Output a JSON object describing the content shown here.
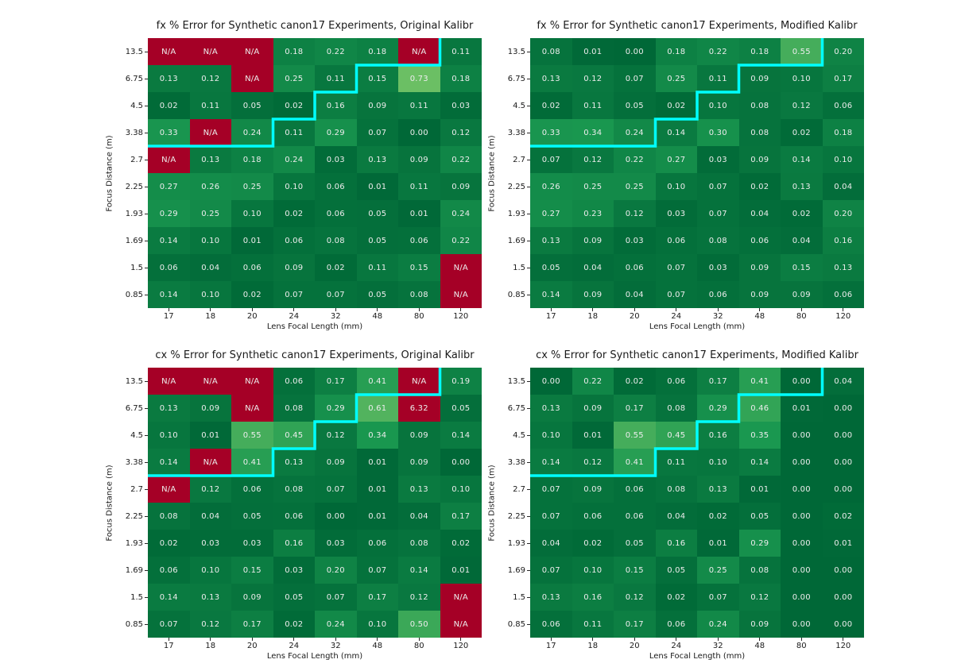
{
  "palette": {
    "background": "#ffffff",
    "na_color": "#a50026",
    "cell_text": "#ededed",
    "axis_text": "#1a1a1a",
    "vmax": 3.5,
    "cmap_stops": [
      [
        "0.0",
        "#006837"
      ],
      [
        "0.1",
        "#1a9850"
      ],
      [
        "0.2",
        "#66bd63"
      ],
      [
        "0.3",
        "#a6d96a"
      ],
      [
        "1.0",
        "#a50026"
      ]
    ]
  },
  "step_line": {
    "color": "#00ffff",
    "stroke_width": 3.5,
    "boundary_col_per_row": [
      7,
      5,
      4,
      3
    ]
  },
  "chart_data": [
    {
      "type": "heatmap",
      "title": "fx % Error for Synthetic canon17 Experiments, Original Kalibr",
      "xlabel": "Lens Focal Length (mm)",
      "ylabel": "Focus Distance (m)",
      "x_ticks": [
        "17",
        "18",
        "20",
        "24",
        "32",
        "48",
        "80",
        "120"
      ],
      "y_ticks": [
        "13.5",
        "6.75",
        "4.5",
        "3.38",
        "2.7",
        "2.25",
        "1.93",
        "1.69",
        "1.5",
        "0.85"
      ],
      "na_label": "N/A",
      "values": [
        [
          "N/A",
          "N/A",
          "N/A",
          "0.18",
          "0.22",
          "0.18",
          "N/A",
          "0.11"
        ],
        [
          "0.13",
          "0.12",
          "N/A",
          "0.25",
          "0.11",
          "0.15",
          "0.73",
          "0.18"
        ],
        [
          "0.02",
          "0.11",
          "0.05",
          "0.02",
          "0.16",
          "0.09",
          "0.11",
          "0.03"
        ],
        [
          "0.33",
          "N/A",
          "0.24",
          "0.11",
          "0.29",
          "0.07",
          "0.00",
          "0.12"
        ],
        [
          "N/A",
          "0.13",
          "0.18",
          "0.24",
          "0.03",
          "0.13",
          "0.09",
          "0.22"
        ],
        [
          "0.27",
          "0.26",
          "0.25",
          "0.10",
          "0.06",
          "0.01",
          "0.11",
          "0.09"
        ],
        [
          "0.29",
          "0.25",
          "0.10",
          "0.02",
          "0.06",
          "0.05",
          "0.01",
          "0.24"
        ],
        [
          "0.14",
          "0.10",
          "0.01",
          "0.06",
          "0.08",
          "0.05",
          "0.06",
          "0.22"
        ],
        [
          "0.06",
          "0.04",
          "0.06",
          "0.09",
          "0.02",
          "0.11",
          "0.15",
          "N/A"
        ],
        [
          "0.14",
          "0.10",
          "0.02",
          "0.07",
          "0.07",
          "0.05",
          "0.08",
          "N/A"
        ]
      ]
    },
    {
      "type": "heatmap",
      "title": "fx % Error for Synthetic canon17 Experiments, Modified Kalibr",
      "xlabel": "Lens Focal Length (mm)",
      "ylabel": "Focus Distance (m)",
      "x_ticks": [
        "17",
        "18",
        "20",
        "24",
        "32",
        "48",
        "80",
        "120"
      ],
      "y_ticks": [
        "13.5",
        "6.75",
        "4.5",
        "3.38",
        "2.7",
        "2.25",
        "1.93",
        "1.69",
        "1.5",
        "0.85"
      ],
      "na_label": "N/A",
      "values": [
        [
          "0.08",
          "0.01",
          "0.00",
          "0.18",
          "0.22",
          "0.18",
          "0.55",
          "0.20"
        ],
        [
          "0.13",
          "0.12",
          "0.07",
          "0.25",
          "0.11",
          "0.09",
          "0.10",
          "0.17"
        ],
        [
          "0.02",
          "0.11",
          "0.05",
          "0.02",
          "0.10",
          "0.08",
          "0.12",
          "0.06"
        ],
        [
          "0.33",
          "0.34",
          "0.24",
          "0.14",
          "0.30",
          "0.08",
          "0.02",
          "0.18"
        ],
        [
          "0.07",
          "0.12",
          "0.22",
          "0.27",
          "0.03",
          "0.09",
          "0.14",
          "0.10"
        ],
        [
          "0.26",
          "0.25",
          "0.25",
          "0.10",
          "0.07",
          "0.02",
          "0.13",
          "0.04"
        ],
        [
          "0.27",
          "0.23",
          "0.12",
          "0.03",
          "0.07",
          "0.04",
          "0.02",
          "0.20"
        ],
        [
          "0.13",
          "0.09",
          "0.03",
          "0.06",
          "0.08",
          "0.06",
          "0.04",
          "0.16"
        ],
        [
          "0.05",
          "0.04",
          "0.06",
          "0.07",
          "0.03",
          "0.09",
          "0.15",
          "0.13"
        ],
        [
          "0.14",
          "0.09",
          "0.04",
          "0.07",
          "0.06",
          "0.09",
          "0.09",
          "0.06"
        ]
      ]
    },
    {
      "type": "heatmap",
      "title": "cx % Error for Synthetic canon17 Experiments, Original Kalibr",
      "xlabel": "Lens Focal Length (mm)",
      "ylabel": "Focus Distance (m)",
      "x_ticks": [
        "17",
        "18",
        "20",
        "24",
        "32",
        "48",
        "80",
        "120"
      ],
      "y_ticks": [
        "13.5",
        "6.75",
        "4.5",
        "3.38",
        "2.7",
        "2.25",
        "1.93",
        "1.69",
        "1.5",
        "0.85"
      ],
      "na_label": "N/A",
      "values": [
        [
          "N/A",
          "N/A",
          "N/A",
          "0.06",
          "0.17",
          "0.41",
          "N/A",
          "0.19"
        ],
        [
          "0.13",
          "0.09",
          "N/A",
          "0.08",
          "0.29",
          "0.61",
          "6.32",
          "0.05"
        ],
        [
          "0.10",
          "0.01",
          "0.55",
          "0.45",
          "0.12",
          "0.34",
          "0.09",
          "0.14"
        ],
        [
          "0.14",
          "N/A",
          "0.41",
          "0.13",
          "0.09",
          "0.01",
          "0.09",
          "0.00"
        ],
        [
          "N/A",
          "0.12",
          "0.06",
          "0.08",
          "0.07",
          "0.01",
          "0.13",
          "0.10"
        ],
        [
          "0.08",
          "0.04",
          "0.05",
          "0.06",
          "0.00",
          "0.01",
          "0.04",
          "0.17"
        ],
        [
          "0.02",
          "0.03",
          "0.03",
          "0.16",
          "0.03",
          "0.06",
          "0.08",
          "0.02"
        ],
        [
          "0.06",
          "0.10",
          "0.15",
          "0.03",
          "0.20",
          "0.07",
          "0.14",
          "0.01"
        ],
        [
          "0.14",
          "0.13",
          "0.09",
          "0.05",
          "0.07",
          "0.17",
          "0.12",
          "N/A"
        ],
        [
          "0.07",
          "0.12",
          "0.17",
          "0.02",
          "0.24",
          "0.10",
          "0.50",
          "N/A"
        ]
      ]
    },
    {
      "type": "heatmap",
      "title": "cx % Error for Synthetic canon17 Experiments, Modified Kalibr",
      "xlabel": "Lens Focal Length (mm)",
      "ylabel": "Focus Distance (m)",
      "x_ticks": [
        "17",
        "18",
        "20",
        "24",
        "32",
        "48",
        "80",
        "120"
      ],
      "y_ticks": [
        "13.5",
        "6.75",
        "4.5",
        "3.38",
        "2.7",
        "2.25",
        "1.93",
        "1.69",
        "1.5",
        "0.85"
      ],
      "na_label": "N/A",
      "values": [
        [
          "0.00",
          "0.22",
          "0.02",
          "0.06",
          "0.17",
          "0.41",
          "0.00",
          "0.04"
        ],
        [
          "0.13",
          "0.09",
          "0.17",
          "0.08",
          "0.29",
          "0.46",
          "0.01",
          "0.00"
        ],
        [
          "0.10",
          "0.01",
          "0.55",
          "0.45",
          "0.16",
          "0.35",
          "0.00",
          "0.00"
        ],
        [
          "0.14",
          "0.12",
          "0.41",
          "0.11",
          "0.10",
          "0.14",
          "0.00",
          "0.00"
        ],
        [
          "0.07",
          "0.09",
          "0.06",
          "0.08",
          "0.13",
          "0.01",
          "0.00",
          "0.00"
        ],
        [
          "0.07",
          "0.06",
          "0.06",
          "0.04",
          "0.02",
          "0.05",
          "0.00",
          "0.02"
        ],
        [
          "0.04",
          "0.02",
          "0.05",
          "0.16",
          "0.01",
          "0.29",
          "0.00",
          "0.01"
        ],
        [
          "0.07",
          "0.10",
          "0.15",
          "0.05",
          "0.25",
          "0.08",
          "0.00",
          "0.00"
        ],
        [
          "0.13",
          "0.16",
          "0.12",
          "0.02",
          "0.07",
          "0.12",
          "0.00",
          "0.00"
        ],
        [
          "0.06",
          "0.11",
          "0.17",
          "0.06",
          "0.24",
          "0.09",
          "0.00",
          "0.00"
        ]
      ]
    }
  ]
}
